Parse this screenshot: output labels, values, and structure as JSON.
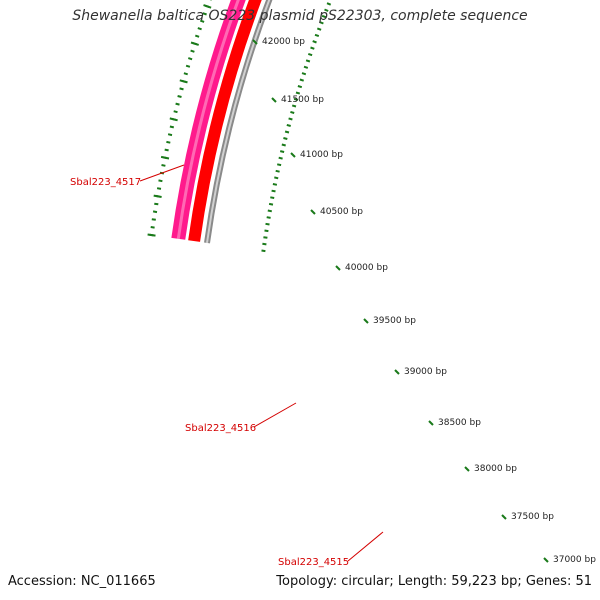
{
  "title": "Shewanella baltica OS223 plasmid pS22303, complete sequence",
  "accession_text": "Accession: NC_011665",
  "summary_text": "Topology: circular; Length: 59,223 bp; Genes: 51",
  "colors": {
    "background": "#ffffff",
    "backbone": "#8a8a8a",
    "cds_forward": "#ff0000",
    "gene_pink": "#ff1a8c",
    "gene_green": "#99ff33",
    "tick_marks": "#1a7a1a",
    "gene_label": "#d40000"
  },
  "scale_labels": [
    "42000 bp",
    "41500 bp",
    "41000 bp",
    "40500 bp",
    "40000 bp",
    "39500 bp",
    "39000 bp",
    "38500 bp",
    "38000 bp",
    "37500 bp",
    "37000 bp"
  ],
  "gene_labels": [
    "Sbal223_4517",
    "Sbal223_4516",
    "Sbal223_4515"
  ]
}
